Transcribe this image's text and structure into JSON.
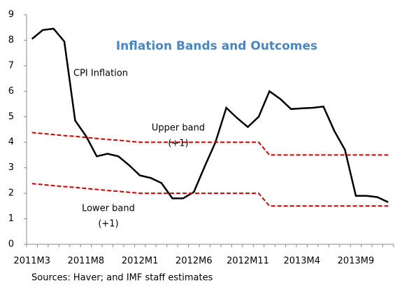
{
  "chart_data": {
    "type": "line",
    "title": "Inflation Bands and Outcomes",
    "source": "Sources: Haver; and IMF staff estimates",
    "categories": [
      "2011M3",
      null,
      null,
      null,
      null,
      "2011M8",
      null,
      null,
      null,
      null,
      "2012M1",
      null,
      null,
      null,
      null,
      "2012M6",
      null,
      null,
      null,
      null,
      "2012M11",
      null,
      null,
      null,
      null,
      "2013M4",
      null,
      null,
      null,
      null,
      "2013M9",
      null,
      null,
      null
    ],
    "series": [
      {
        "color": "#000000",
        "dash": "solid",
        "values": [
          8.05,
          8.4,
          8.45,
          7.95,
          4.85,
          4.25,
          3.45,
          3.55,
          3.45,
          3.1,
          2.7,
          2.6,
          2.4,
          1.8,
          1.8,
          2.05,
          3.05,
          4.0,
          5.35,
          4.95,
          4.6,
          5.0,
          6.0,
          5.7,
          5.3,
          5.33,
          5.35,
          5.4,
          4.45,
          3.7,
          1.9,
          1.9,
          1.85,
          1.65
        ]
      },
      {
        "color": "#cc0000",
        "dash": "dashed",
        "values": [
          4.38,
          4.34,
          4.3,
          4.26,
          4.23,
          4.19,
          4.15,
          4.11,
          4.08,
          4.04,
          4.0,
          4.0,
          4.0,
          4.0,
          4.0,
          4.0,
          4.0,
          4.0,
          4.0,
          4.0,
          4.0,
          4.0,
          3.5,
          3.5,
          3.5,
          3.5,
          3.5,
          3.5,
          3.5,
          3.5,
          3.5,
          3.5,
          3.5,
          3.5
        ]
      },
      {
        "color": "#cc0000",
        "dash": "dashed",
        "values": [
          2.38,
          2.34,
          2.3,
          2.26,
          2.23,
          2.19,
          2.15,
          2.11,
          2.08,
          2.04,
          2.0,
          2.0,
          2.0,
          2.0,
          2.0,
          2.0,
          2.0,
          2.0,
          2.0,
          2.0,
          2.0,
          2.0,
          1.5,
          1.5,
          1.5,
          1.5,
          1.5,
          1.5,
          1.5,
          1.5,
          1.5,
          1.5,
          1.5,
          1.5
        ]
      }
    ],
    "annotations": [
      "CPI Inflation",
      "Upper band",
      "(+1)",
      "Lower band",
      "(+1)"
    ],
    "ylim": [
      0,
      9
    ],
    "yticks": [
      0,
      1,
      2,
      3,
      4,
      5,
      6,
      7,
      8,
      9
    ],
    "grid": false
  }
}
